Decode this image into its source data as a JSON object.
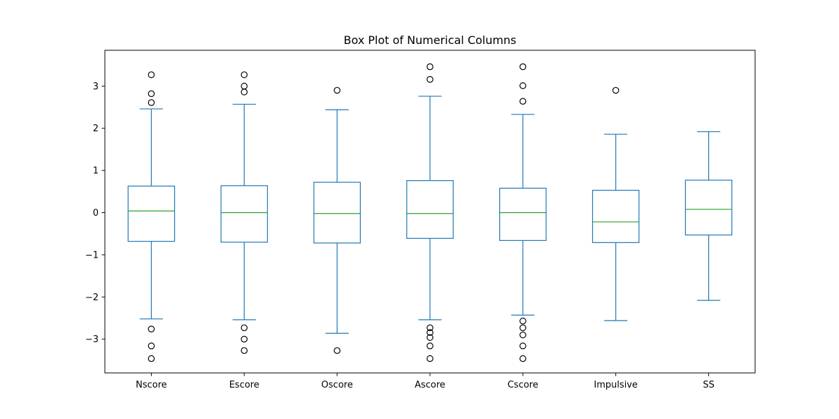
{
  "chart_data": {
    "type": "box",
    "title": "Box Plot of Numerical Columns",
    "xlabel": "",
    "ylabel": "",
    "ylim": [
      -3.8,
      3.85
    ],
    "yticks": [
      -3,
      -2,
      -1,
      0,
      1,
      2,
      3
    ],
    "ytick_labels": [
      "−3",
      "−2",
      "−1",
      "0",
      "1",
      "2",
      "3"
    ],
    "grid": false,
    "colors": {
      "box": "#1f77b4",
      "median": "#2ca02c",
      "flier": "#000000",
      "axes": "#000000"
    },
    "boxes": [
      {
        "name": "Nscore",
        "whisker_low": -2.52,
        "q1": -0.68,
        "median": 0.04,
        "q3": 0.63,
        "whisker_high": 2.46,
        "fliers": [
          3.27,
          2.82,
          2.61,
          -2.76,
          -3.16,
          -3.46
        ]
      },
      {
        "name": "Escore",
        "whisker_low": -2.54,
        "q1": -0.7,
        "median": 0.0,
        "q3": 0.64,
        "whisker_high": 2.57,
        "fliers": [
          3.27,
          3.0,
          2.86,
          -2.73,
          -3.0,
          -3.27
        ]
      },
      {
        "name": "Oscore",
        "whisker_low": -2.86,
        "q1": -0.72,
        "median": -0.02,
        "q3": 0.72,
        "whisker_high": 2.44,
        "fliers": [
          2.9,
          -3.27
        ]
      },
      {
        "name": "Ascore",
        "whisker_low": -2.54,
        "q1": -0.61,
        "median": -0.02,
        "q3": 0.76,
        "whisker_high": 2.76,
        "fliers": [
          3.46,
          3.16,
          -2.73,
          -2.84,
          -2.96,
          -3.16,
          -3.46
        ]
      },
      {
        "name": "Cscore",
        "whisker_low": -2.43,
        "q1": -0.66,
        "median": 0.0,
        "q3": 0.58,
        "whisker_high": 2.33,
        "fliers": [
          3.46,
          3.01,
          2.64,
          -2.57,
          -2.73,
          -2.9,
          -3.16,
          -3.46
        ]
      },
      {
        "name": "Impulsive",
        "whisker_low": -2.56,
        "q1": -0.71,
        "median": -0.22,
        "q3": 0.53,
        "whisker_high": 1.86,
        "fliers": [
          2.9
        ]
      },
      {
        "name": "SS",
        "whisker_low": -2.08,
        "q1": -0.53,
        "median": 0.08,
        "q3": 0.77,
        "whisker_high": 1.92,
        "fliers": []
      }
    ]
  }
}
